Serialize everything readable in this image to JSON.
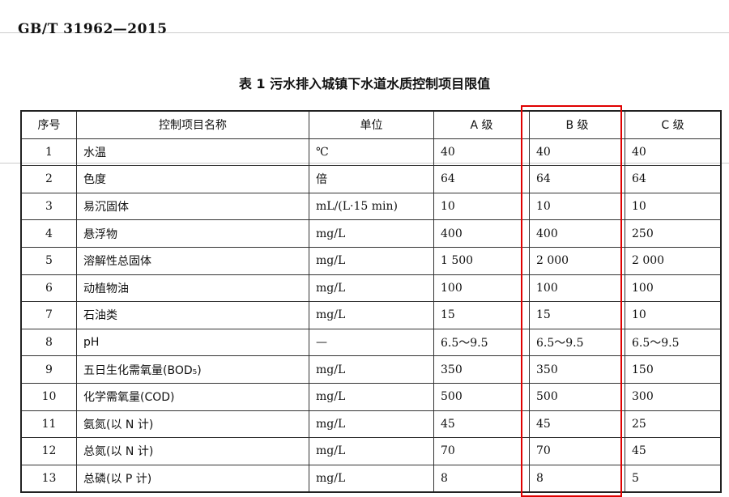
{
  "header": {
    "standard_number": "GB/T 31962—2015"
  },
  "table": {
    "title": "表 1   污水排入城镇下水道水质控制项目限值",
    "columns": [
      "序号",
      "控制项目名称",
      "单位",
      "A 级",
      "B 级",
      "C 级"
    ],
    "rows": [
      [
        "1",
        "水温",
        "℃",
        "40",
        "40",
        "40"
      ],
      [
        "2",
        "色度",
        "倍",
        "64",
        "64",
        "64"
      ],
      [
        "3",
        "易沉固体",
        "mL/(L·15 min)",
        "10",
        "10",
        "10"
      ],
      [
        "4",
        "悬浮物",
        "mg/L",
        "400",
        "400",
        "250"
      ],
      [
        "5",
        "溶解性总固体",
        "mg/L",
        "1 500",
        "2 000",
        "2 000"
      ],
      [
        "6",
        "动植物油",
        "mg/L",
        "100",
        "100",
        "100"
      ],
      [
        "7",
        "石油类",
        "mg/L",
        "15",
        "15",
        "10"
      ],
      [
        "8",
        "pH",
        "—",
        "6.5～9.5",
        "6.5～9.5",
        "6.5～9.5"
      ],
      [
        "9",
        "五日生化需氧量(BOD₅)",
        "mg/L",
        "350",
        "350",
        "150"
      ],
      [
        "10",
        "化学需氧量(COD)",
        "mg/L",
        "500",
        "500",
        "300"
      ],
      [
        "11",
        "氨氮(以 N 计)",
        "mg/L",
        "45",
        "45",
        "25"
      ],
      [
        "12",
        "总氮(以 N 计)",
        "mg/L",
        "70",
        "70",
        "45"
      ],
      [
        "13",
        "总磷(以 P 计)",
        "mg/L",
        "8",
        "8",
        "5"
      ]
    ]
  },
  "highlight": {
    "column": "B 级",
    "color": "#e00000"
  }
}
